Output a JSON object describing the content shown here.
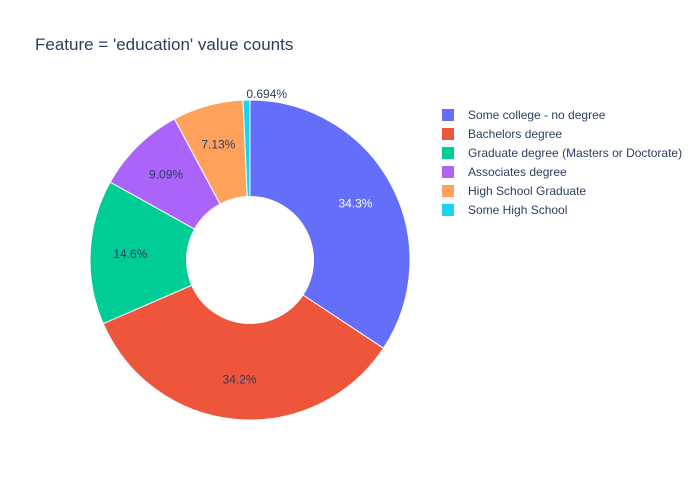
{
  "chart_data": {
    "type": "pie",
    "title": "Feature = 'education' value counts",
    "hole": true,
    "legend_position": "right",
    "slices": [
      {
        "label": "Some college - no degree",
        "percent": 34.3,
        "display": "34.3%",
        "color": "#636efa",
        "label_color": "#ffffff",
        "label_placement": "inside"
      },
      {
        "label": "Bachelors degree",
        "percent": 34.2,
        "display": "34.2%",
        "color": "#ef553b",
        "label_color": "#2a3f5f",
        "label_placement": "inside"
      },
      {
        "label": "Graduate degree (Masters or Doctorate)",
        "percent": 14.6,
        "display": "14.6%",
        "color": "#00cc96",
        "label_color": "#2a3f5f",
        "label_placement": "inside"
      },
      {
        "label": "Associates degree",
        "percent": 9.09,
        "display": "9.09%",
        "color": "#ab63fa",
        "label_color": "#2a3f5f",
        "label_placement": "inside"
      },
      {
        "label": "High School Graduate",
        "percent": 7.13,
        "display": "7.13%",
        "color": "#ffa15a",
        "label_color": "#2a3f5f",
        "label_placement": "inside"
      },
      {
        "label": "Some High School",
        "percent": 0.694,
        "display": "0.694%",
        "color": "#19d3f3",
        "label_color": "#2a3f5f",
        "label_placement": "outside"
      }
    ]
  }
}
